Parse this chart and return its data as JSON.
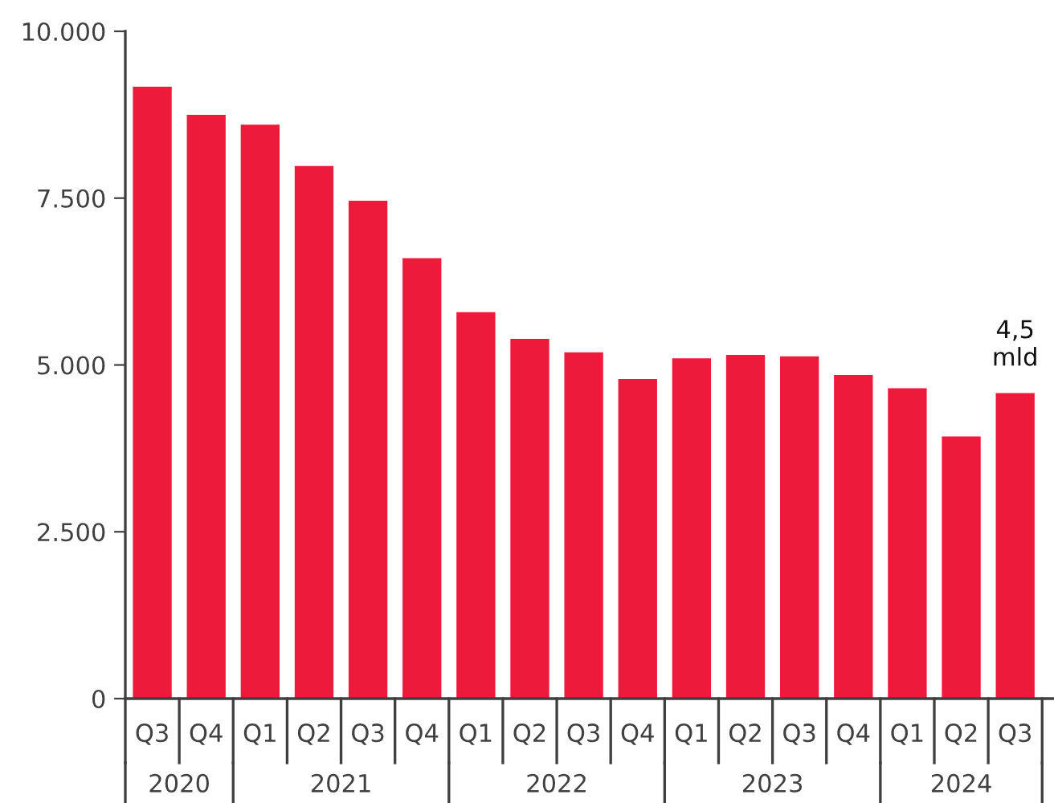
{
  "chart_data": {
    "type": "bar",
    "categories": [
      "Q3",
      "Q4",
      "Q1",
      "Q2",
      "Q3",
      "Q4",
      "Q1",
      "Q2",
      "Q3",
      "Q4",
      "Q1",
      "Q2",
      "Q3",
      "Q4",
      "Q1",
      "Q2",
      "Q3"
    ],
    "values": [
      9170,
      8750,
      8600,
      7980,
      7460,
      6600,
      5790,
      5390,
      5190,
      4790,
      5100,
      5150,
      5130,
      4850,
      4650,
      3930,
      4580
    ],
    "color": "#ee1a3c",
    "ylim": [
      0,
      10000
    ],
    "yticks": [
      {
        "value": 0,
        "label": "0"
      },
      {
        "value": 2500,
        "label": "2.500"
      },
      {
        "value": 5000,
        "label": "5.000"
      },
      {
        "value": 7500,
        "label": "7.500"
      },
      {
        "value": 10000,
        "label": "10.000"
      }
    ],
    "grid": false,
    "annotations": [
      "2020",
      "2021",
      "2022",
      "2023",
      "2024",
      "4,5\nmld"
    ]
  }
}
